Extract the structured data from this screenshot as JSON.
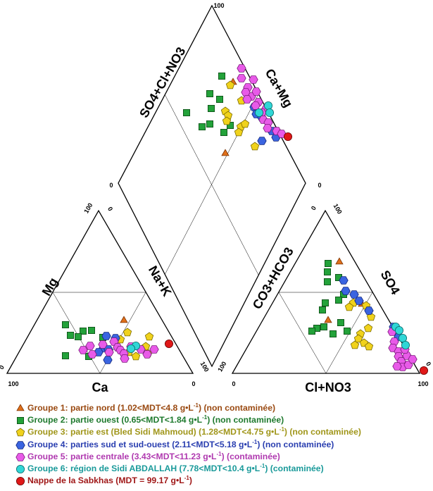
{
  "diagram": {
    "cation_triangle": {
      "axes": {
        "mg": "Mg",
        "nak": "Na+K",
        "ca": "Ca"
      },
      "ticks": {
        "left_100": "100",
        "left_0": "0",
        "bottom_100": "100",
        "bottom_0": "0",
        "right_0": "0",
        "right_100": "100"
      }
    },
    "anion_triangle": {
      "axes": {
        "co3hco3": "CO3+HCO3",
        "so4": "SO4",
        "clno3": "Cl+NO3"
      },
      "ticks": {
        "left_0": "0",
        "left_100": "100",
        "bottom_0": "0",
        "bottom_100": "100",
        "right_100": "100",
        "right_0": "0"
      }
    },
    "diamond": {
      "axes": {
        "so4clno3": "SO4+Cl+NO3",
        "camg": "Ca+Mg"
      },
      "ticks": {
        "top_100": "100",
        "left_0": "0",
        "right_0": "0",
        "left_100": "100",
        "right_100": "100"
      }
    }
  },
  "legend": [
    {
      "symbol": "triangle",
      "color": "#e0701a",
      "stroke": "#7a3000",
      "text_color": "#9a4a12",
      "label_before": "Groupe 1: partie nord (1.02<MDT<4.8 g•L",
      "sup": "-1",
      "label_after": ") (non contaminée)"
    },
    {
      "symbol": "square",
      "color": "#23a23a",
      "stroke": "#0b4a14",
      "text_color": "#1f7a2e",
      "label_before": "Groupe 2: partie ouest (0.65<MDT<1.84 g•L",
      "sup": "-1",
      "label_after": ") (non contaminée)"
    },
    {
      "symbol": "pentagon",
      "color": "#f0d21c",
      "stroke": "#7a6a00",
      "text_color": "#a0961a",
      "label_before": "Groupe 3: partie est (Bled Sidi Mahmoud) (1.28<MDT<4.75 g•L",
      "sup": "-1",
      "label_after": ") (non contaminée)"
    },
    {
      "symbol": "hexagon",
      "color": "#3a64e0",
      "stroke": "#10247a",
      "text_color": "#2a3fb0",
      "label_before": "Groupe 4: parties sud et sud-ouest (2.11<MDT<5.18 g•L",
      "sup": "-1",
      "label_after": ") (non contaminée)"
    },
    {
      "symbol": "hexagon",
      "color": "#e85ae8",
      "stroke": "#7a1a7a",
      "text_color": "#b03ab0",
      "label_before": "Groupe 5: partie centrale (3.43<MDT<11.23 g•L",
      "sup": "-1",
      "label_after": ") (contaminée)"
    },
    {
      "symbol": "circle",
      "color": "#30d6d6",
      "stroke": "#0a6a6a",
      "text_color": "#1a9a9a",
      "label_before": "Groupe 6: région de Sidi ABDALLAH (7.78<MDT<10.4 g•L",
      "sup": "-1",
      "label_after": ") (contaminée)"
    },
    {
      "symbol": "circle",
      "color": "#e01818",
      "stroke": "#6a0000",
      "text_color": "#a01818",
      "label_before": "Nappe de la Sabkhas (MDT = 99.17 g•L",
      "sup": "-1",
      "label_after": ")"
    }
  ]
}
